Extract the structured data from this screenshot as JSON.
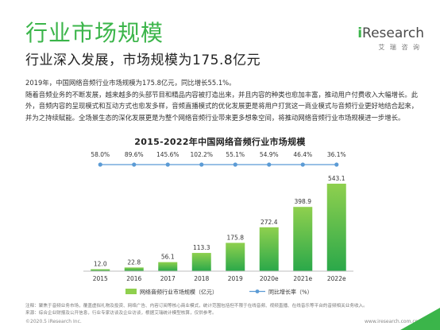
{
  "page": {
    "title": "行业市场规模",
    "subtitle": "行业深入发展，市场规模为175.8亿元",
    "paragraph1": "2019年，中国网络音频行业市场规模为175.8亿元，同比增长55.1%。",
    "paragraph2": "随着音频业务的不断发展，越来越多的头部节目和精品内容被打造出来，并且内容的种类也愈加丰富，推动用户付费收入大幅增长。此外，音频内容的呈现模式和互动方式也愈发多样，音频直播模式的优化发展更是将用户打赏这一商业模式与音频行业更好地结合起来，并为之持续赋能。全场景生态的深化发展更是为整个网络音频行业带来更多想象空间，将推动网络音频行业市场规模进一步增长。",
    "note": "注释：聚焦于音频业务市场，覆盖虚拟礼物及投资、网络广告、内容订阅等核心商业模式，统计范围包括但不限于在线音频、视频直播、在线音乐等平台的音频相关业务收入。",
    "source": "来源：综合企业财报及公开信息，行业专家访谈及企业访谈，根据艾瑞统计模型核算，仅供参考。",
    "copyright": "©2020.5 iResearch Inc.",
    "website": "www.iresearch.com.cn",
    "page_number": "9"
  },
  "logo": {
    "i": "i",
    "word": "Research",
    "sub": "艾 瑞 咨 询"
  },
  "colors": {
    "brand": "#3bb54a",
    "bar_top": "#8fd04e",
    "bar_bottom": "#2aa84a",
    "line": "#5b9bd5",
    "axis": "#bfbfbf"
  },
  "chart_data": {
    "type": "bar",
    "title": "2015-2022年中国网络音频行业市场规模",
    "categories": [
      "2015",
      "2016",
      "2017",
      "2018",
      "2019",
      "2020e",
      "2021e",
      "2022e"
    ],
    "series": [
      {
        "name": "网络音频行业市场规模（亿元）",
        "type": "bar",
        "values": [
          12.0,
          22.8,
          56.1,
          113.3,
          175.8,
          272.4,
          398.9,
          543.1
        ],
        "labels": [
          "12.0",
          "22.8",
          "56.1",
          "113.3",
          "175.8",
          "272.4",
          "398.9",
          "543.1"
        ]
      },
      {
        "name": "同比增长率（%）",
        "type": "line",
        "values": [
          58.0,
          89.6,
          145.6,
          102.2,
          55.1,
          54.9,
          46.4,
          36.1
        ],
        "labels": [
          "58.0%",
          "89.6%",
          "145.6%",
          "102.2%",
          "55.1%",
          "54.9%",
          "46.4%",
          "36.1%"
        ]
      }
    ],
    "ylim": [
      0,
      560
    ],
    "legend_position": "bottom-center",
    "grid": false
  }
}
